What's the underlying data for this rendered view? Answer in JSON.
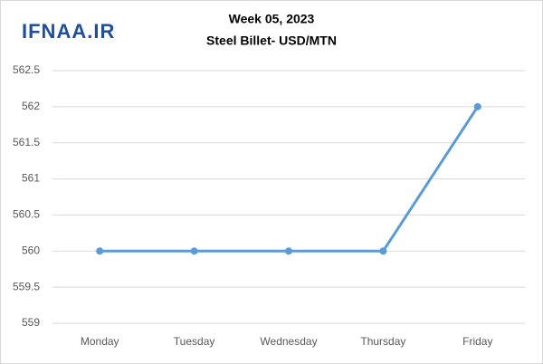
{
  "chart_data": {
    "type": "line",
    "title": "Week 05, 2023",
    "subtitle": "Steel Billet- USD/MTN",
    "watermark": "IFNAA.IR",
    "categories": [
      "Monday",
      "Tuesday",
      "Wednesday",
      "Thursday",
      "Friday"
    ],
    "series": [
      {
        "name": "Steel Billet",
        "color": "#5b9bd5",
        "values": [
          560,
          560,
          560,
          560,
          562
        ]
      }
    ],
    "ylim": [
      559,
      562.5
    ],
    "yticks": [
      559,
      559.5,
      560,
      560.5,
      561,
      561.5,
      562,
      562.5
    ],
    "grid": true
  }
}
